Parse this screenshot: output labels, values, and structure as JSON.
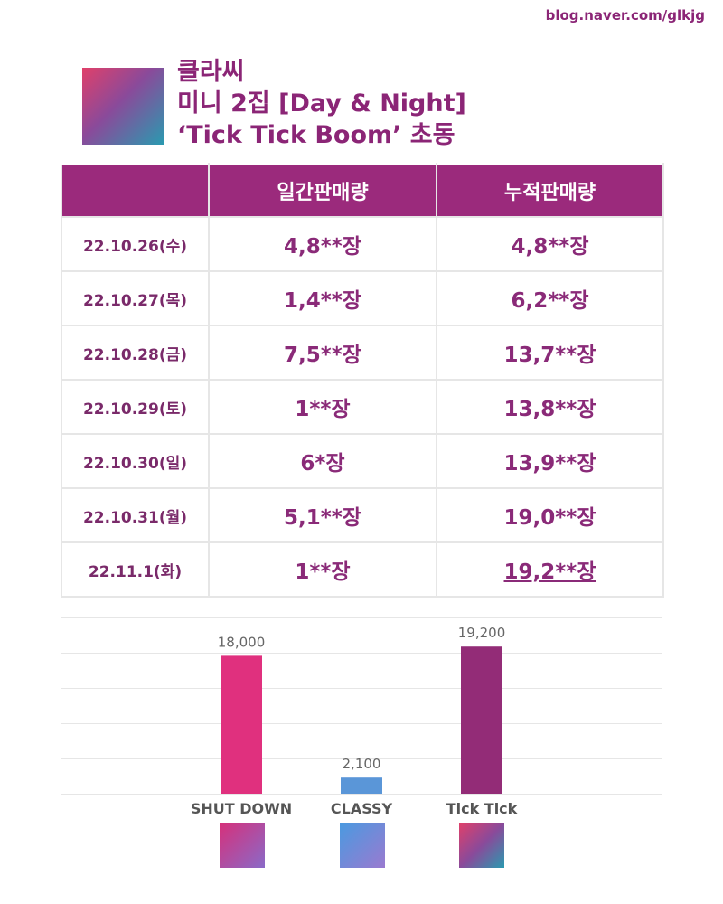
{
  "header": {
    "watermark": "blog.naver.com/glkjg",
    "title": [
      "클라씨",
      "미니 2집 [Day & Night]",
      "‘Tick Tick Boom’ 초동"
    ]
  },
  "table": {
    "headers": [
      "일간판매량",
      "누적판매량"
    ],
    "rows": [
      [
        "22.10.26(수)",
        "4,8**장",
        "4,8**장"
      ],
      [
        "22.10.27(목)",
        "1,4**장",
        "6,2**장"
      ],
      [
        "22.10.28(금)",
        "7,5**장",
        "13,7**장"
      ],
      [
        "22.10.29(토)",
        "1**장",
        "13,8**장"
      ],
      [
        "22.10.30(일)",
        "6*장",
        "13,9**장"
      ],
      [
        "22.10.31(월)",
        "5,1**장",
        "19,0**장"
      ],
      [
        "22.11.1(화)",
        "1**장",
        "19,2**장"
      ]
    ]
  },
  "chart_data": {
    "type": "bar",
    "categories": [
      "SHUT DOWN",
      "CLASSY",
      "Tick Tick"
    ],
    "values": [
      18000,
      2100,
      19200
    ],
    "value_labels": [
      "18,000",
      "2,100",
      "19,200"
    ],
    "colors": [
      "#e0307e",
      "#5a96d8",
      "#932c77"
    ],
    "ylim": [
      0,
      23000
    ],
    "yticks": [
      0,
      4600,
      9200,
      13800,
      18400,
      23000
    ],
    "grid": true
  }
}
